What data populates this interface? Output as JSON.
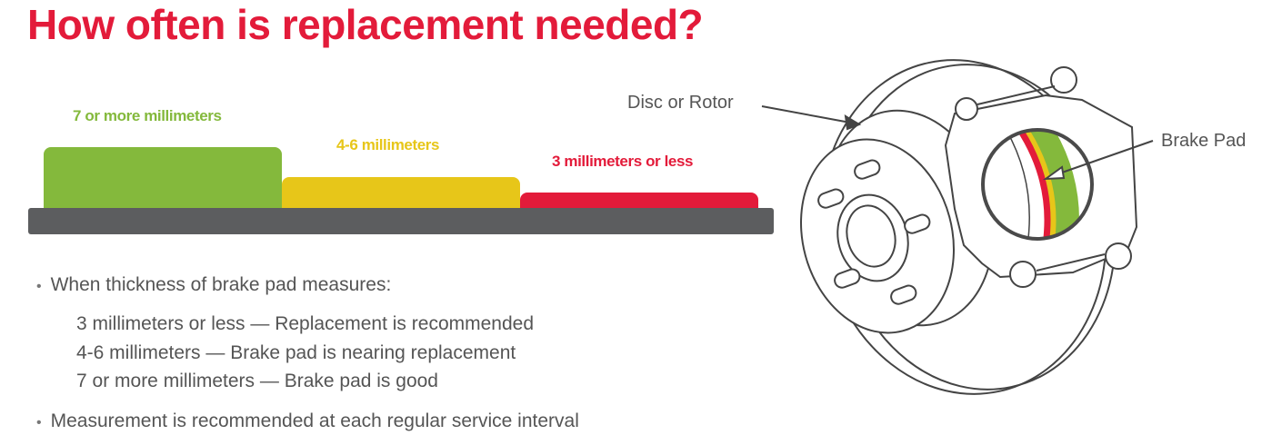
{
  "title": "How often is replacement needed?",
  "levels": [
    {
      "label": "7 or more millimeters",
      "color": "#84b93c"
    },
    {
      "label": "4-6 millimeters",
      "color": "#e7c619"
    },
    {
      "label": "3 millimeters or less",
      "color": "#e31b3a"
    }
  ],
  "base_color": "#5c5d5f",
  "bullets": {
    "intro": "When thickness of brake pad measures:",
    "items": [
      "3 millimeters or less — Replacement is recommended",
      "4-6 millimeters — Brake pad is nearing replacement",
      "7 or more millimeters — Brake pad is good"
    ],
    "closing": "Measurement is recommended at each regular service interval"
  },
  "diagram": {
    "disc_label": "Disc or Rotor",
    "pad_label": "Brake Pad"
  }
}
